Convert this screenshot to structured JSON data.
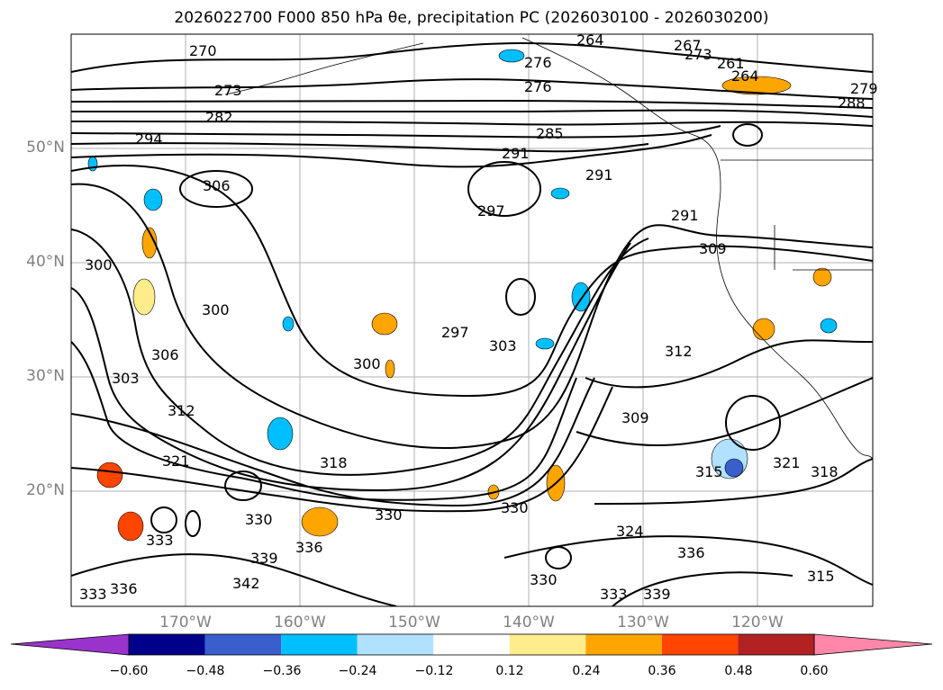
{
  "title": "2026022700 F000 850 hPa θe, precipitation PC (2026030100 - 2026030200)",
  "lat_labels": [
    "50°N",
    "40°N",
    "30°N",
    "20°N"
  ],
  "lon_labels": [
    "170°W",
    "160°W",
    "150°W",
    "140°W",
    "130°W",
    "120°W"
  ],
  "colorbar": {
    "ticks": [
      "−0.60",
      "−0.48",
      "−0.36",
      "−0.24",
      "−0.12",
      "0.12",
      "0.24",
      "0.36",
      "0.48",
      "0.60"
    ],
    "colors": [
      "#9933cc",
      "#00008b",
      "#3a5fcd",
      "#00bfff",
      "#b0e2ff",
      "#ffffff",
      "#ffec8b",
      "#ffa500",
      "#ff4500",
      "#b22222",
      "#ff88aa"
    ]
  },
  "contour_labels": [
    "270",
    "273",
    "276",
    "276",
    "282",
    "285",
    "288",
    "291",
    "291",
    "291",
    "294",
    "297",
    "297",
    "300",
    "300",
    "300",
    "303",
    "303",
    "306",
    "306",
    "309",
    "309",
    "312",
    "312",
    "315",
    "315",
    "318",
    "318",
    "321",
    "321",
    "324",
    "330",
    "330",
    "330",
    "330",
    "333",
    "333",
    "333",
    "336",
    "336",
    "336",
    "339",
    "339",
    "342",
    "261",
    "264",
    "267",
    "264",
    "273",
    "279"
  ]
}
